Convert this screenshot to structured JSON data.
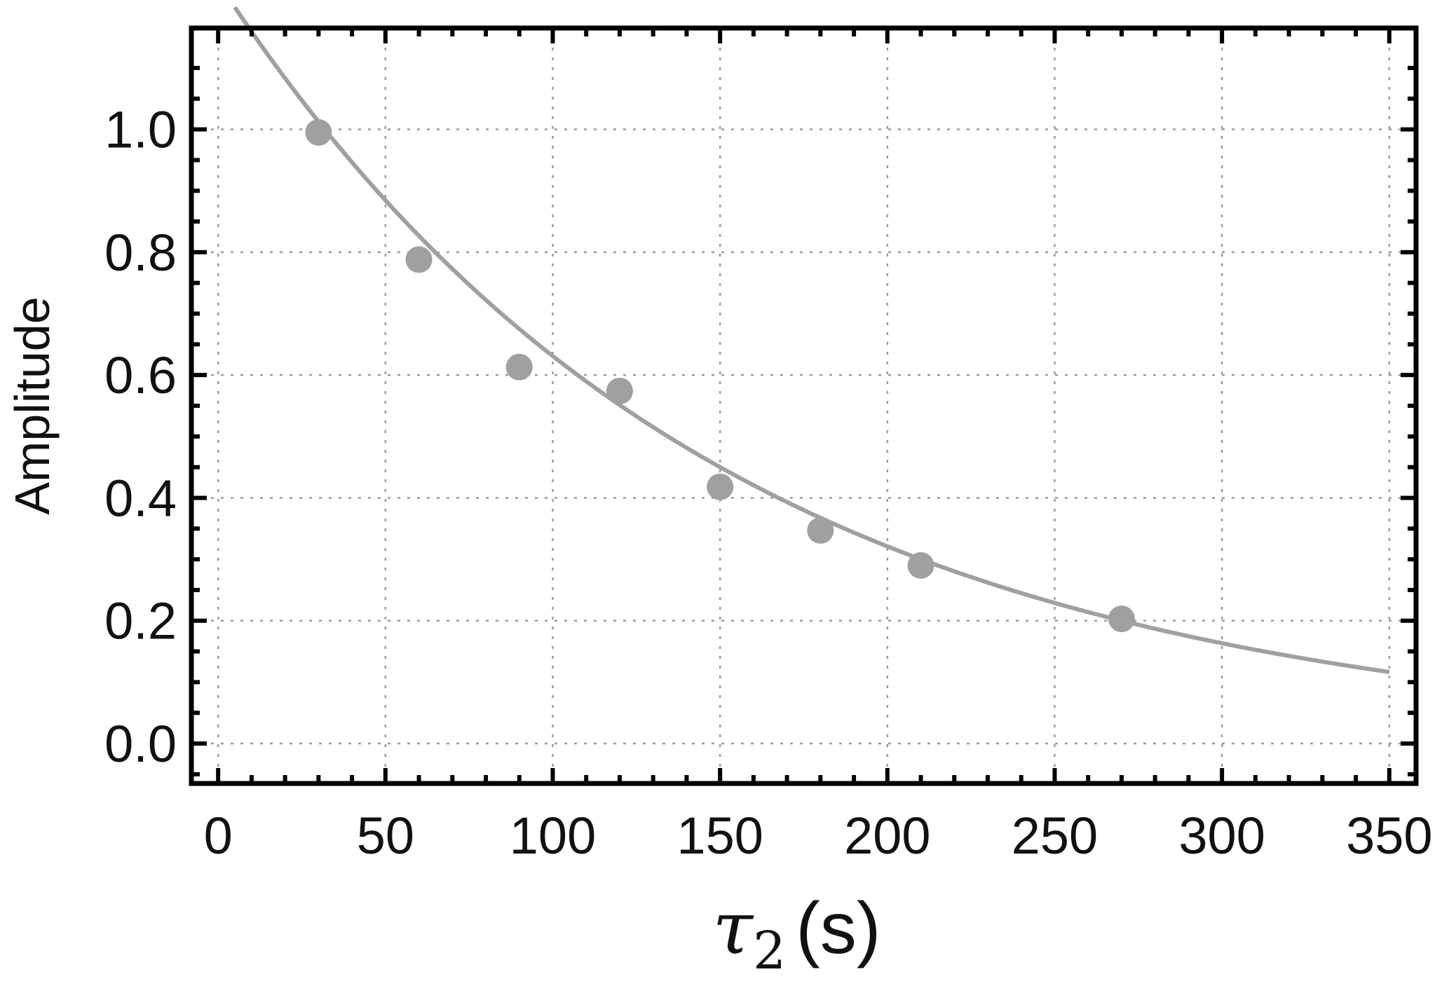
{
  "chart_data": {
    "type": "scatter",
    "title": "",
    "xlabel": {
      "symbol": "τ",
      "subscript": "2",
      "unit": "(s)"
    },
    "ylabel": "Amplitude",
    "xlim": [
      -8,
      358
    ],
    "ylim": [
      -0.065,
      1.165
    ],
    "xticks": [
      0,
      50,
      100,
      150,
      200,
      250,
      300,
      350
    ],
    "xtick_labels": [
      "0",
      "50",
      "100",
      "150",
      "200",
      "250",
      "300",
      "350"
    ],
    "yticks": [
      0.0,
      0.2,
      0.4,
      0.6,
      0.8,
      1.0
    ],
    "ytick_labels": [
      "0.0",
      "0.2",
      "0.4",
      "0.6",
      "0.8",
      "1.0"
    ],
    "grid": true,
    "series": [
      {
        "kind": "points",
        "x": [
          30,
          60,
          90,
          120,
          150,
          180,
          210,
          270
        ],
        "y": [
          0.995,
          0.788,
          0.613,
          0.574,
          0.418,
          0.347,
          0.29,
          0.203
        ]
      },
      {
        "kind": "fit-curve",
        "model": "exponential decay",
        "x_range": [
          5,
          350
        ],
        "amplitude": 1.24,
        "decay_time": 148,
        "offset": 0
      }
    ],
    "colors": {
      "points": "#a0a0a0",
      "curve": "#a0a0a0",
      "frame": "#000000",
      "grid": "#9a9a9a"
    }
  }
}
